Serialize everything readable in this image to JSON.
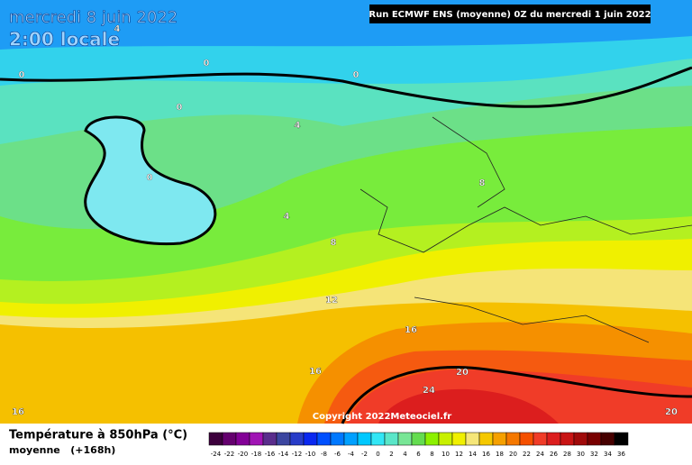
{
  "header": {
    "date": "mercredi 8 juin 2022",
    "time": "2:00 locale",
    "run": "Run ECMWF ENS (moyenne) 0Z du mercredi 1 juin 2022"
  },
  "copyright": "Copyright 2022Meteociel.fr",
  "contour_labels": [
    "0",
    "0",
    "0",
    "0",
    "0",
    "4",
    "4",
    "4",
    "8",
    "8",
    "12",
    "16",
    "16",
    "16",
    "20",
    "20",
    "24"
  ],
  "legend": {
    "title": "Température à 850hPa (°C)",
    "subtitle": "moyenne   (+168h)",
    "ticks": [
      "-24",
      "-22",
      "-20",
      "-18",
      "-16",
      "-14",
      "-12",
      "-10",
      "-8",
      "-6",
      "-4",
      "-2",
      "0",
      "2",
      "4",
      "6",
      "8",
      "10",
      "12",
      "14",
      "16",
      "18",
      "20",
      "22",
      "24",
      "26",
      "28",
      "30",
      "32",
      "34",
      "36"
    ],
    "colors": [
      "#3c003c",
      "#64006e",
      "#820096",
      "#a014b4",
      "#5a2d8c",
      "#3c46a0",
      "#283cc8",
      "#0a28f0",
      "#0050ff",
      "#0078ff",
      "#00a0ff",
      "#00c8ff",
      "#32e6f5",
      "#5ae6c8",
      "#78e696",
      "#64dc50",
      "#8cf000",
      "#c8f000",
      "#f0f000",
      "#f5e678",
      "#f5c800",
      "#f5a000",
      "#f57800",
      "#f55000",
      "#f03c28",
      "#dc1e1e",
      "#c81414",
      "#a00a0a",
      "#780000",
      "#460000",
      "#000000"
    ]
  }
}
